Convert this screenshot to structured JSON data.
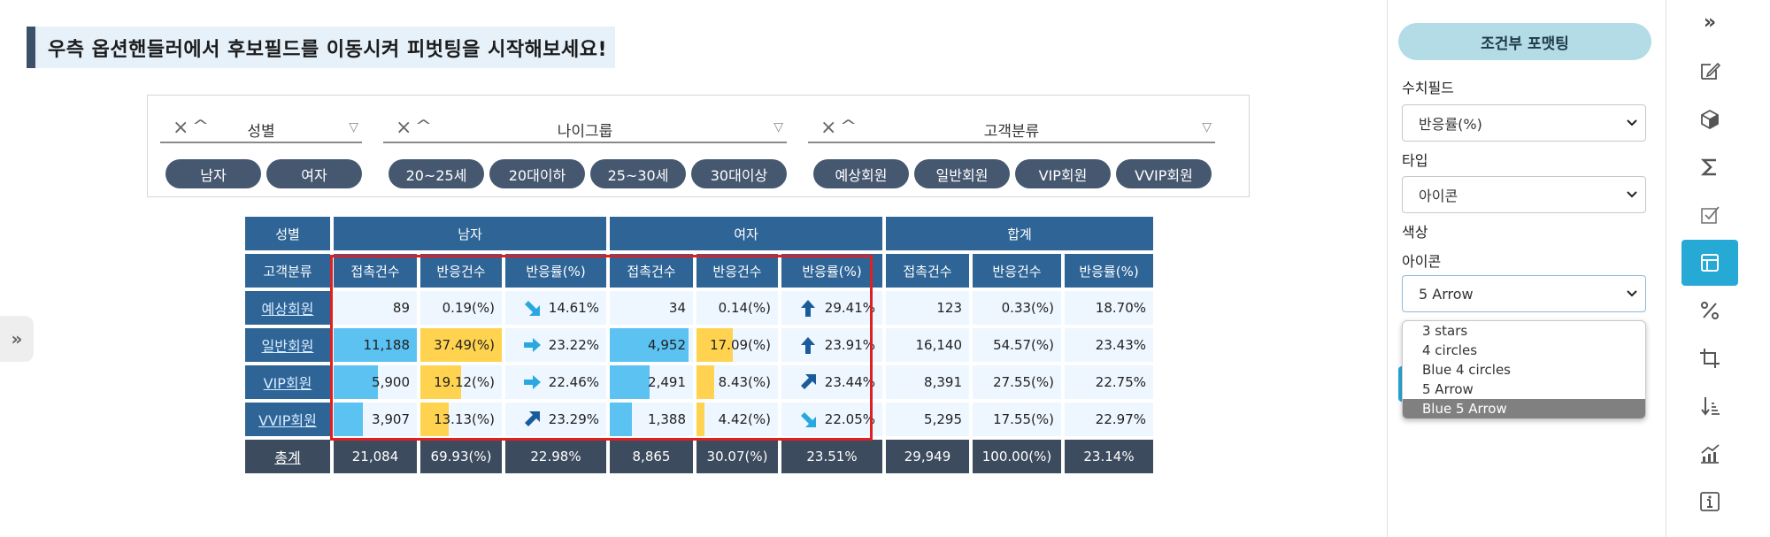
{
  "headline": "우측 옵션핸들러에서 후보필드를 이동시켜 피벗팅을 시작해보세요!",
  "left_tab_icon": "»",
  "filters": [
    {
      "title": "성별",
      "items": [
        "남자",
        "여자"
      ]
    },
    {
      "title": "나이그룹",
      "items": [
        "20~25세",
        "20대이하",
        "25~30세",
        "30대이상"
      ]
    },
    {
      "title": "고객분류",
      "items": [
        "예상회원",
        "일반회원",
        "VIP회원",
        "VVIP회원"
      ]
    }
  ],
  "table": {
    "corner_top": "성별",
    "corner_bottom": "고객분류",
    "groups": [
      "남자",
      "여자",
      "합계"
    ],
    "measures": [
      "접촉건수",
      "반응건수",
      "반응률(%)",
      "접촉건수",
      "반응건수",
      "반응률(%)",
      "접촉건수",
      "반응건수",
      "반응률(%)"
    ],
    "rows": [
      {
        "label": "예상회원",
        "m_contact": "89",
        "m_resp": "0.19(%)",
        "m_rate": "14.61%",
        "m_arrow": "down-right",
        "f_contact": "34",
        "f_resp": "0.14(%)",
        "f_rate": "29.41%",
        "f_arrow": "up",
        "t_contact": "123",
        "t_resp": "0.33(%)",
        "t_rate": "18.70%",
        "m_contact_fill": 0.0,
        "m_resp_fill": 0.0,
        "f_contact_fill": 0.0,
        "f_resp_fill": 0.0
      },
      {
        "label": "일반회원",
        "m_contact": "11,188",
        "m_resp": "37.49(%)",
        "m_rate": "23.22%",
        "m_arrow": "right",
        "f_contact": "4,952",
        "f_resp": "17.09(%)",
        "f_rate": "23.91%",
        "f_arrow": "up",
        "t_contact": "16,140",
        "t_resp": "54.57(%)",
        "t_rate": "23.43%",
        "m_contact_fill": 1.0,
        "m_resp_fill": 1.0,
        "f_contact_fill": 0.95,
        "f_resp_fill": 0.45
      },
      {
        "label": "VIP회원",
        "m_contact": "5,900",
        "m_resp": "19.12(%)",
        "m_rate": "22.46%",
        "m_arrow": "right",
        "f_contact": "2,491",
        "f_resp": "8.43(%)",
        "f_rate": "23.44%",
        "f_arrow": "up-right",
        "t_contact": "8,391",
        "t_resp": "27.55(%)",
        "t_rate": "22.75%",
        "m_contact_fill": 0.53,
        "m_resp_fill": 0.5,
        "f_contact_fill": 0.48,
        "f_resp_fill": 0.22
      },
      {
        "label": "VVIP회원",
        "m_contact": "3,907",
        "m_resp": "13.13(%)",
        "m_rate": "23.29%",
        "m_arrow": "up-right",
        "f_contact": "1,388",
        "f_resp": "4.42(%)",
        "f_rate": "22.05%",
        "f_arrow": "down-right",
        "t_contact": "5,295",
        "t_resp": "17.55(%)",
        "t_rate": "22.97%",
        "m_contact_fill": 0.35,
        "m_resp_fill": 0.35,
        "f_contact_fill": 0.27,
        "f_resp_fill": 0.1
      }
    ],
    "total": {
      "label": "총계",
      "values": [
        "21,084",
        "69.93(%)",
        "22.98%",
        "8,865",
        "30.07(%)",
        "23.51%",
        "29,949",
        "100.00(%)",
        "23.14%"
      ]
    }
  },
  "panel": {
    "title": "조건부 포맷팅",
    "field_label": "수치필드",
    "field_value": "반응률(%)",
    "type_label": "타입",
    "type_value": "아이콘",
    "color_label": "색상",
    "icon_label": "아이콘",
    "icon_value": "5 Arrow",
    "icon_options": [
      "3 stars",
      "4 circles",
      "Blue 4 circles",
      "5 Arrow",
      "Blue 5 Arrow"
    ],
    "icon_highlighted": "Blue 5 Arrow"
  },
  "toolbar": {
    "collapse_icon": "»",
    "items": [
      "edit-icon",
      "cube-icon",
      "sigma-icon",
      "checkbox-icon",
      "table-layout-icon",
      "percent-icon",
      "crop-icon",
      "sort-icon",
      "chart-icon",
      "info-icon"
    ],
    "active": "table-layout-icon"
  },
  "colors": {
    "header_blue": "#2e6496",
    "dark_slate": "#3c4b5e",
    "bar_blue": "#5bc2f2",
    "bar_yellow": "#ffd34f",
    "arrow_dark": "#1a5c9a",
    "arrow_light": "#29a8e0",
    "accent_teal": "#27a9d6",
    "highlight_red": "#e02020"
  }
}
